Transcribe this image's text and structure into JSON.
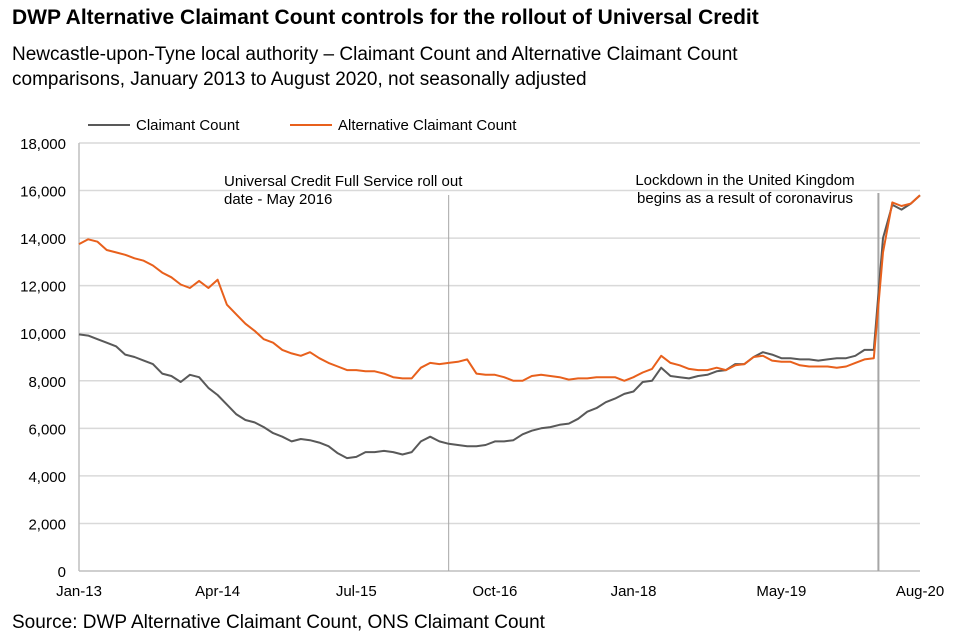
{
  "title": "DWP Alternative Claimant Count controls for the rollout of Universal Credit",
  "subtitle_line1": "Newcastle-upon-Tyne local authority – Claimant Count and Alternative Claimant Count",
  "subtitle_line2": "comparisons, January 2013 to August 2020, not seasonally adjusted",
  "source": "Source: DWP Alternative Claimant Count, ONS Claimant Count",
  "chart_data": {
    "type": "line",
    "title": "DWP Alternative Claimant Count controls for the rollout of Universal Credit",
    "xlabel": "",
    "ylabel": "",
    "x_start": "Jan-13",
    "x_end": "Aug-20",
    "x_unit": "month",
    "x_tick_labels": [
      {
        "label": "Jan-13",
        "index": 0
      },
      {
        "label": "Apr-14",
        "index": 15
      },
      {
        "label": "Jul-15",
        "index": 30
      },
      {
        "label": "Oct-16",
        "index": 45
      },
      {
        "label": "Jan-18",
        "index": 60
      },
      {
        "label": "May-19",
        "index": 76
      },
      {
        "label": "Aug-20",
        "index": 91
      }
    ],
    "ylim": [
      0,
      18000
    ],
    "y_ticks": [
      "0",
      "2,000",
      "4,000",
      "6,000",
      "8,000",
      "10,000",
      "12,000",
      "14,000",
      "16,000",
      "18,000"
    ],
    "y_tick_values": [
      0,
      2000,
      4000,
      6000,
      8000,
      10000,
      12000,
      14000,
      16000,
      18000
    ],
    "grid": "horizontal",
    "legend_position": "top-left",
    "series": [
      {
        "name": "Claimant Count",
        "color": "#595959",
        "values": [
          9950,
          9900,
          9750,
          9600,
          9450,
          9100,
          9000,
          8850,
          8700,
          8300,
          8200,
          7950,
          8250,
          8150,
          7700,
          7400,
          7000,
          6600,
          6350,
          6250,
          6050,
          5800,
          5650,
          5450,
          5550,
          5500,
          5400,
          5250,
          4950,
          4750,
          4800,
          5000,
          5000,
          5050,
          5000,
          4900,
          5000,
          5450,
          5650,
          5450,
          5350,
          5300,
          5250,
          5250,
          5300,
          5450,
          5450,
          5500,
          5750,
          5900,
          6000,
          6050,
          6150,
          6200,
          6400,
          6700,
          6850,
          7100,
          7250,
          7450,
          7550,
          7950,
          8000,
          8550,
          8200,
          8150,
          8100,
          8200,
          8250,
          8400,
          8450,
          8700,
          8700,
          9000,
          9200,
          9100,
          8950,
          8950,
          8900,
          8900,
          8850,
          8900,
          8950,
          8950,
          9050,
          9300,
          9300,
          14000,
          15400,
          15200,
          15450,
          15800
        ]
      },
      {
        "name": "Alternative Claimant Count",
        "color": "#E8601C",
        "values": [
          13750,
          13950,
          13850,
          13500,
          13400,
          13300,
          13150,
          13050,
          12850,
          12550,
          12350,
          12050,
          11900,
          12200,
          11900,
          12250,
          11200,
          10800,
          10400,
          10100,
          9750,
          9600,
          9300,
          9150,
          9050,
          9200,
          8950,
          8750,
          8600,
          8450,
          8450,
          8400,
          8400,
          8300,
          8150,
          8100,
          8100,
          8550,
          8750,
          8700,
          8750,
          8800,
          8900,
          8300,
          8250,
          8250,
          8150,
          8000,
          8000,
          8200,
          8250,
          8200,
          8150,
          8050,
          8100,
          8100,
          8150,
          8150,
          8150,
          8000,
          8150,
          8350,
          8500,
          9050,
          8750,
          8650,
          8500,
          8450,
          8450,
          8550,
          8450,
          8650,
          8700,
          9000,
          9050,
          8850,
          8800,
          8800,
          8650,
          8600,
          8600,
          8600,
          8550,
          8600,
          8750,
          8900,
          8950,
          13400,
          15500,
          15350,
          15450,
          15800
        ]
      }
    ],
    "annotations": [
      {
        "lines": [
          "Universal Credit Full Service roll out",
          "date - May 2016"
        ],
        "index": 40
      },
      {
        "lines": [
          "Lockdown in the United Kingdom",
          "begins as a result of coronavirus"
        ],
        "index": 86.5
      }
    ]
  }
}
